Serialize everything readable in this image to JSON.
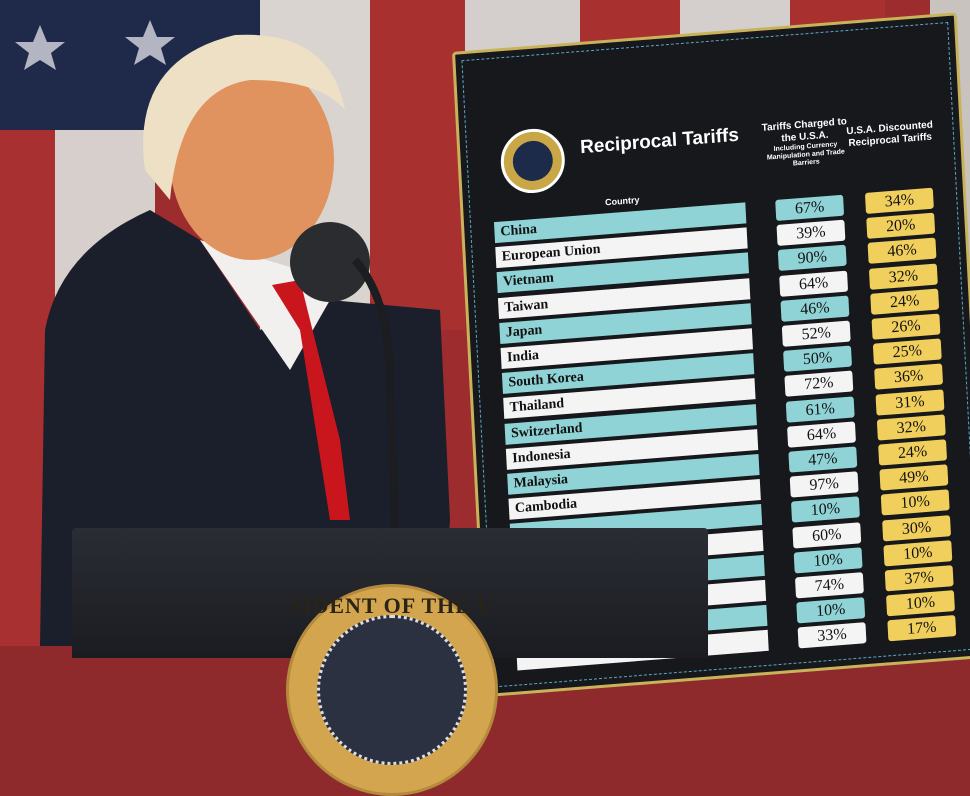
{
  "scene": {
    "board_title": "Reciprocal Tariffs",
    "column_country": "Country",
    "column_charged": "Tariffs Charged to the U.S.A.",
    "column_charged_note": "Including Currency Manipulation and Trade Barriers",
    "column_discounted": "U.S.A. Discounted Reciprocal Tariffs",
    "podium_seal_text": "SIDENT OF THE U",
    "colors": {
      "flag_red": "#a8302f",
      "flag_white": "#d9d4d0",
      "flag_blue": "#1f2a4a",
      "board": "#16181c",
      "teal": "#8fd3d6",
      "yellow": "#f1cf5c"
    }
  },
  "rows": [
    {
      "country": "China",
      "charged": "67%",
      "discounted": "34%"
    },
    {
      "country": "European Union",
      "charged": "39%",
      "discounted": "20%"
    },
    {
      "country": "Vietnam",
      "charged": "90%",
      "discounted": "46%"
    },
    {
      "country": "Taiwan",
      "charged": "64%",
      "discounted": "32%"
    },
    {
      "country": "Japan",
      "charged": "46%",
      "discounted": "24%"
    },
    {
      "country": "India",
      "charged": "52%",
      "discounted": "26%"
    },
    {
      "country": "South Korea",
      "charged": "50%",
      "discounted": "25%"
    },
    {
      "country": "Thailand",
      "charged": "72%",
      "discounted": "36%"
    },
    {
      "country": "Switzerland",
      "charged": "61%",
      "discounted": "31%"
    },
    {
      "country": "Indonesia",
      "charged": "64%",
      "discounted": "32%"
    },
    {
      "country": "Malaysia",
      "charged": "47%",
      "discounted": "24%"
    },
    {
      "country": "Cambodia",
      "charged": "97%",
      "discounted": "49%"
    },
    {
      "country": "",
      "charged": "10%",
      "discounted": "10%"
    },
    {
      "country": "",
      "charged": "60%",
      "discounted": "30%"
    },
    {
      "country": "",
      "charged": "10%",
      "discounted": "10%"
    },
    {
      "country": "",
      "charged": "74%",
      "discounted": "37%"
    },
    {
      "country": "",
      "charged": "10%",
      "discounted": "10%"
    },
    {
      "country": "",
      "charged": "33%",
      "discounted": "17%"
    }
  ]
}
